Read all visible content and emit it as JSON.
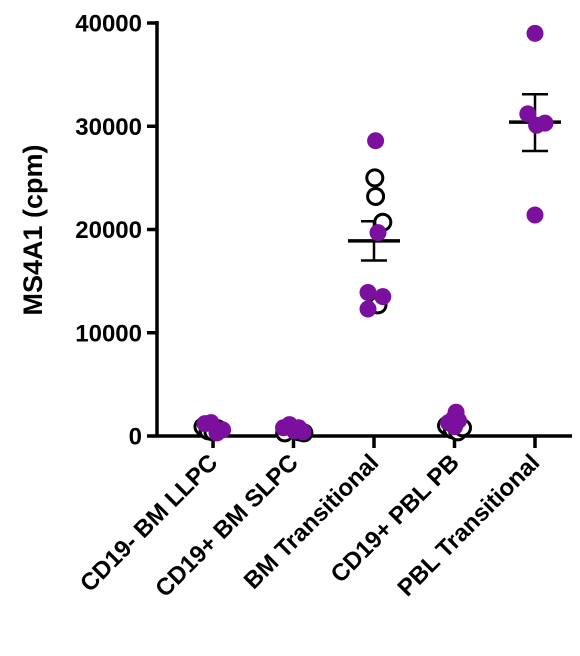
{
  "chart_data": {
    "type": "scatter",
    "ylabel": "MS4A1 (cpm)",
    "ylim": [
      0,
      40000
    ],
    "yticks": [
      0,
      10000,
      20000,
      30000,
      40000
    ],
    "ytick_labels": [
      "0",
      "10000",
      "20000",
      "30000",
      "40000"
    ],
    "categories": [
      "CD19- BM LLPC",
      "CD19+ BM SLPC",
      "BM Transitional",
      "CD19+ PBL PB",
      "PBL Transitional"
    ],
    "colors": {
      "purple": "#7b0f9e",
      "open": "#000000"
    },
    "groups": [
      {
        "category": "CD19- BM LLPC",
        "points": [
          {
            "offset": -0.25,
            "y": 900,
            "fill": "open"
          },
          {
            "offset": -0.12,
            "y": 500,
            "fill": "open"
          },
          {
            "offset": 0.0,
            "y": 400,
            "fill": "open"
          },
          {
            "offset": 0.12,
            "y": 700,
            "fill": "open"
          },
          {
            "offset": -0.2,
            "y": 1200,
            "fill": "purple"
          },
          {
            "offset": -0.05,
            "y": 1300,
            "fill": "purple"
          },
          {
            "offset": 0.1,
            "y": 300,
            "fill": "purple"
          },
          {
            "offset": 0.24,
            "y": 600,
            "fill": "purple"
          }
        ]
      },
      {
        "category": "CD19+ BM SLPC",
        "points": [
          {
            "offset": -0.22,
            "y": 300,
            "fill": "open"
          },
          {
            "offset": 0.15,
            "y": 400,
            "fill": "open"
          },
          {
            "offset": 0.26,
            "y": 300,
            "fill": "open"
          },
          {
            "offset": -0.25,
            "y": 800,
            "fill": "purple"
          },
          {
            "offset": -0.1,
            "y": 1100,
            "fill": "purple"
          },
          {
            "offset": 0.02,
            "y": 500,
            "fill": "purple"
          },
          {
            "offset": 0.13,
            "y": 800,
            "fill": "purple"
          },
          {
            "offset": 0.24,
            "y": 400,
            "fill": "purple"
          }
        ]
      },
      {
        "category": "BM Transitional",
        "mean": 18900,
        "sem": [
          17000,
          20800
        ],
        "points": [
          {
            "offset": 0.02,
            "y": 25000,
            "fill": "open"
          },
          {
            "offset": 0.04,
            "y": 23200,
            "fill": "open"
          },
          {
            "offset": 0.22,
            "y": 20700,
            "fill": "open"
          },
          {
            "offset": 0.1,
            "y": 12700,
            "fill": "open"
          },
          {
            "offset": 0.04,
            "y": 28600,
            "fill": "purple"
          },
          {
            "offset": 0.1,
            "y": 19700,
            "fill": "purple"
          },
          {
            "offset": -0.15,
            "y": 13900,
            "fill": "purple"
          },
          {
            "offset": 0.22,
            "y": 13500,
            "fill": "purple"
          },
          {
            "offset": -0.15,
            "y": 12300,
            "fill": "purple"
          }
        ]
      },
      {
        "category": "CD19+ PBL PB",
        "points": [
          {
            "offset": -0.2,
            "y": 1000,
            "fill": "open"
          },
          {
            "offset": -0.05,
            "y": 600,
            "fill": "open"
          },
          {
            "offset": 0.08,
            "y": 400,
            "fill": "open"
          },
          {
            "offset": 0.2,
            "y": 800,
            "fill": "open"
          },
          {
            "offset": -0.15,
            "y": 1300,
            "fill": "purple"
          },
          {
            "offset": -0.02,
            "y": 1700,
            "fill": "purple"
          },
          {
            "offset": 0.04,
            "y": 2300,
            "fill": "purple"
          },
          {
            "offset": 0.1,
            "y": 1500,
            "fill": "purple"
          },
          {
            "offset": 0.0,
            "y": 900,
            "fill": "purple"
          }
        ]
      },
      {
        "category": "PBL Transitional",
        "mean": 30400,
        "sem": [
          27600,
          33100
        ],
        "points": [
          {
            "offset": 0.0,
            "y": 39000,
            "fill": "purple"
          },
          {
            "offset": -0.18,
            "y": 31200,
            "fill": "purple"
          },
          {
            "offset": 0.04,
            "y": 30100,
            "fill": "purple"
          },
          {
            "offset": 0.25,
            "y": 30300,
            "fill": "purple"
          },
          {
            "offset": 0.0,
            "y": 21400,
            "fill": "purple"
          }
        ]
      }
    ]
  }
}
